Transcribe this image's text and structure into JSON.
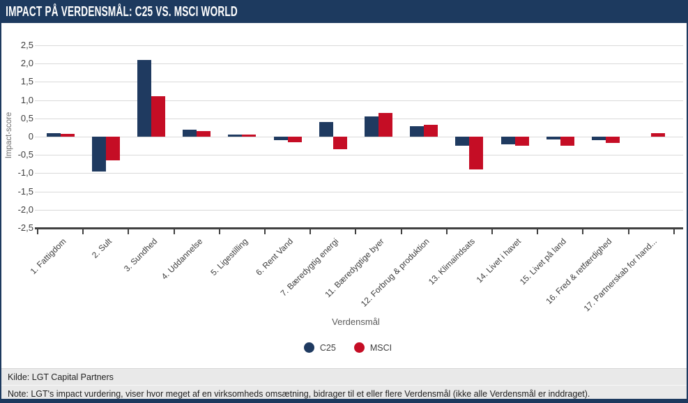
{
  "header": {
    "title": "IMPACT PÅ VERDENSMÅL: C25 VS. MSCI WORLD"
  },
  "chart_data": {
    "type": "bar",
    "title": "Impact på Verdensmål: C25 vs. MSCI World",
    "categories": [
      "1. Fattigdom",
      "2. Sult",
      "3. Sundhed",
      "4. Uddannelse",
      "5. Ligestilling",
      "6. Rent Vand",
      "7. Bæredygtig energi",
      "11. Bæredygtige byer",
      "12. Forbrug & produktion",
      "13. Klimaindsats",
      "14. Livet i havet",
      "15. Livet på land",
      "16. Fred & retfærdighed",
      "17. Partnerskab for hand..."
    ],
    "series": [
      {
        "name": "C25",
        "color": "#1f3a60",
        "values": [
          0.1,
          -0.95,
          2.1,
          0.2,
          0.06,
          -0.1,
          0.4,
          0.55,
          0.28,
          -0.25,
          -0.2,
          -0.08,
          -0.09,
          0
        ]
      },
      {
        "name": "MSCI",
        "color": "#c50d25",
        "values": [
          0.07,
          -0.65,
          1.1,
          0.16,
          0.05,
          -0.15,
          -0.35,
          0.65,
          0.32,
          -0.9,
          -0.25,
          -0.25,
          -0.18,
          0.1
        ]
      }
    ],
    "xlabel": "Verdensmål",
    "ylabel": "Impact-score",
    "ylim": [
      -2.5,
      2.5
    ],
    "ytick_step": 0.5,
    "ytick_labels": [
      "2,5",
      "2,0",
      "1,5",
      "1,0",
      "0,5",
      "0",
      "-0,5",
      "-1,0",
      "-1,5",
      "-2,0",
      "-2,5"
    ],
    "grid": true,
    "legend_position": "bottom"
  },
  "footer": {
    "kilde": "Kilde: LGT Capital Partners",
    "note": "Note: LGT's impact vurdering, viser hvor meget af en virksomheds omsætning, bidrager til et eller flere Verdensmål (ikke alle Verdensmål er inddraget)."
  }
}
